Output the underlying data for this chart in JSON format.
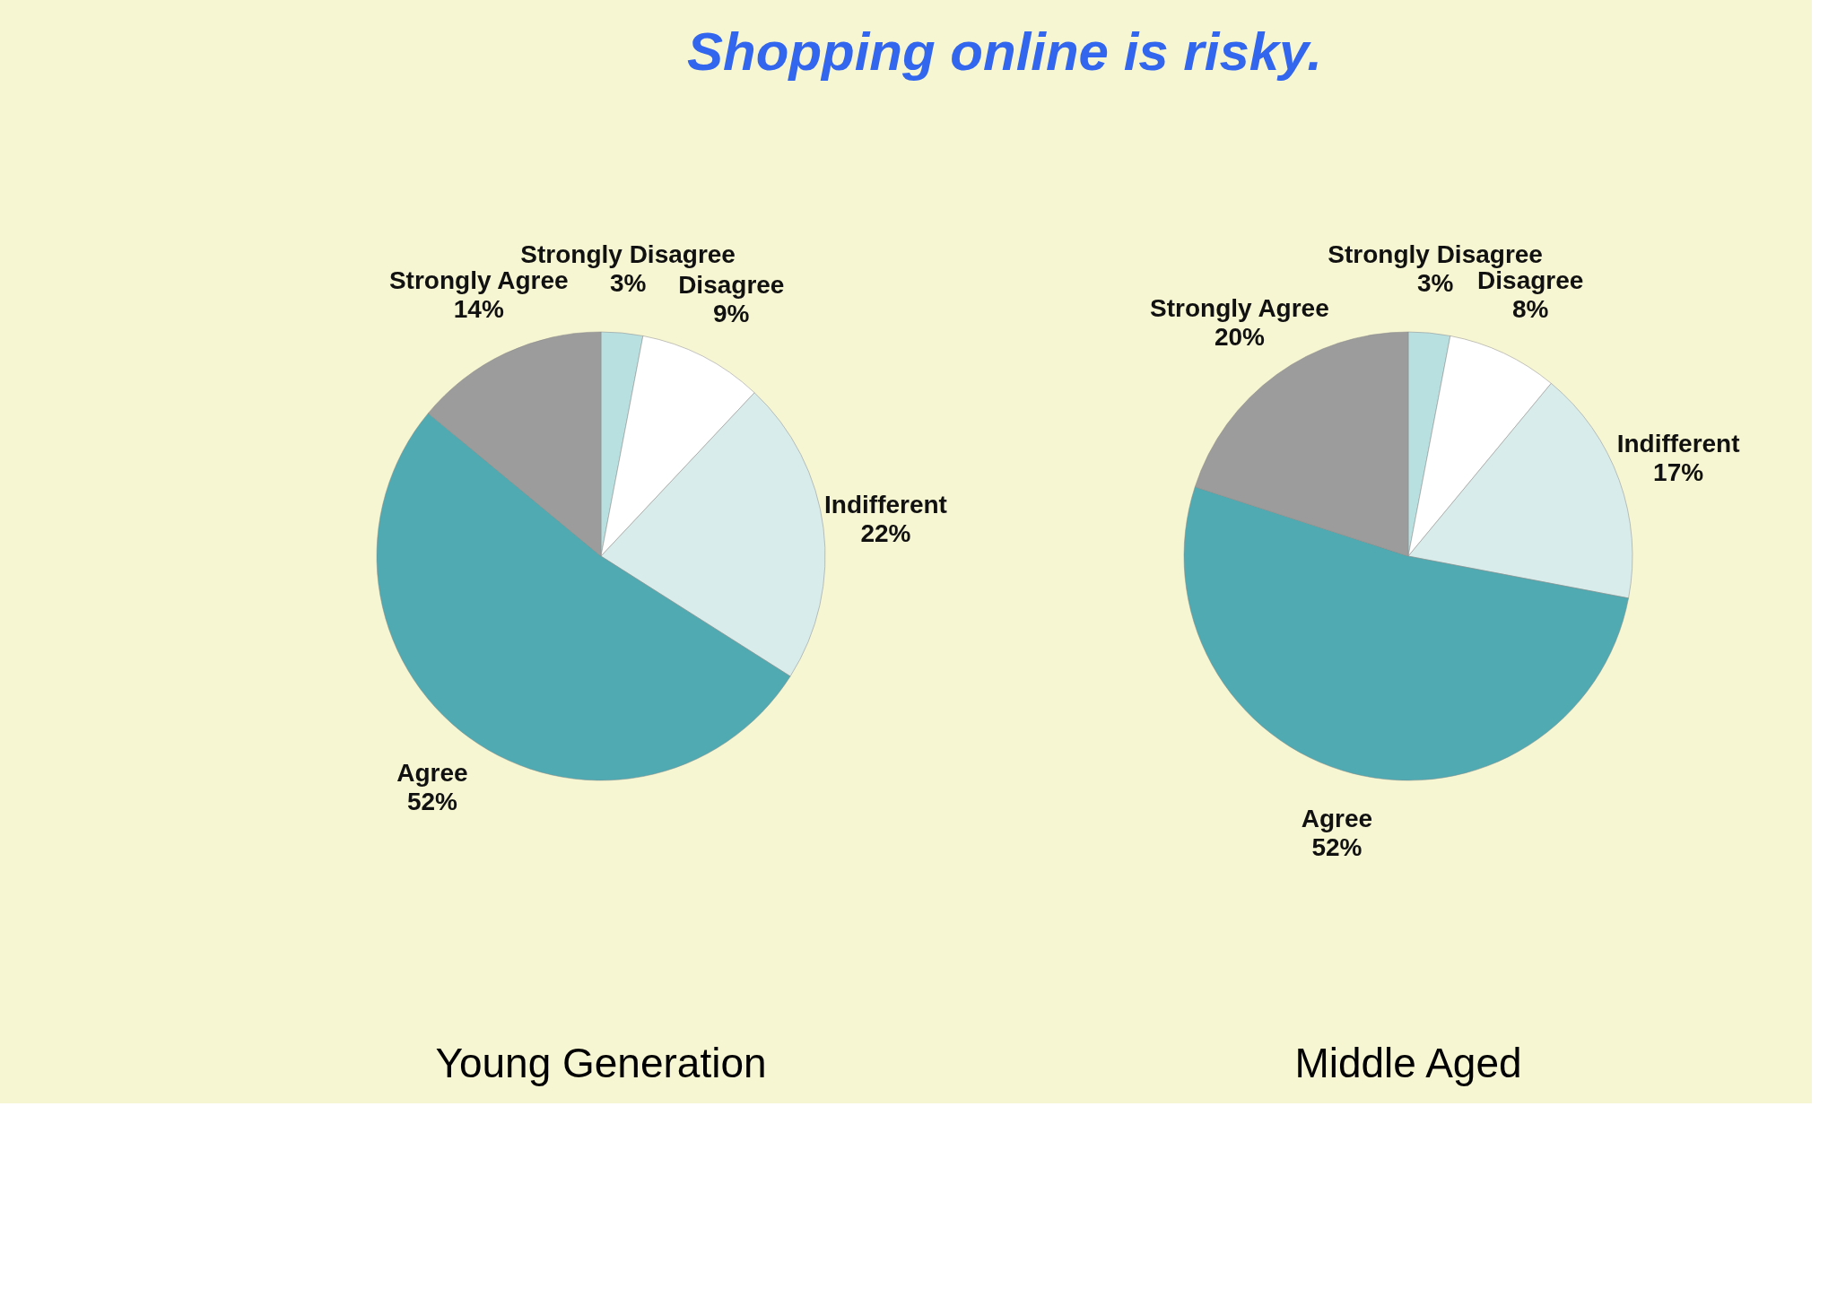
{
  "chart_data": [
    {
      "type": "pie",
      "title": "Young Generation",
      "annotations": [
        "Shopping online is risky."
      ],
      "categories": [
        "Strongly Disagree",
        "Disagree",
        "Indifferent",
        "Agree",
        "Strongly Agree"
      ],
      "values": [
        3,
        9,
        22,
        52,
        14
      ],
      "value_labels": [
        "3%",
        "9%",
        "22%",
        "52%",
        "14%"
      ],
      "colors": [
        "#b9e0e1",
        "#ffffff",
        "#d9ecec",
        "#4faab2",
        "#9d9c9c"
      ]
    },
    {
      "type": "pie",
      "title": "Middle Aged",
      "categories": [
        "Strongly Disagree",
        "Disagree",
        "Indifferent",
        "Agree",
        "Strongly Agree"
      ],
      "values": [
        3,
        8,
        17,
        52,
        20
      ],
      "value_labels": [
        "3%",
        "8%",
        "17%",
        "52%",
        "20%"
      ],
      "colors": [
        "#b9e0e1",
        "#ffffff",
        "#d9ecec",
        "#4faab2",
        "#9d9c9c"
      ]
    }
  ]
}
